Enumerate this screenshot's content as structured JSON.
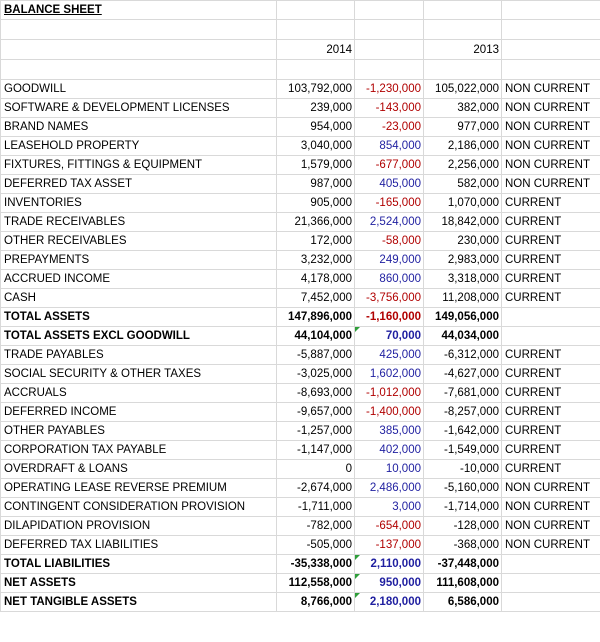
{
  "sheet": {
    "title": "BALANCE SHEET",
    "year_1": "2014",
    "year_2": "2013",
    "rows": [
      {
        "label": "GOODWILL",
        "v2014": "103,792,000",
        "change": "-1,230,000",
        "change_sign": "neg",
        "v2013": "105,022,000",
        "category": "NON CURRENT",
        "bold": false,
        "flag": false
      },
      {
        "label": "SOFTWARE & DEVELOPMENT LICENSES",
        "v2014": "239,000",
        "change": "-143,000",
        "change_sign": "neg",
        "v2013": "382,000",
        "category": "NON CURRENT",
        "bold": false,
        "flag": false
      },
      {
        "label": "BRAND NAMES",
        "v2014": "954,000",
        "change": "-23,000",
        "change_sign": "neg",
        "v2013": "977,000",
        "category": "NON CURRENT",
        "bold": false,
        "flag": false
      },
      {
        "label": "LEASEHOLD PROPERTY",
        "v2014": "3,040,000",
        "change": "854,000",
        "change_sign": "pos",
        "v2013": "2,186,000",
        "category": "NON CURRENT",
        "bold": false,
        "flag": false
      },
      {
        "label": "FIXTURES, FITTINGS & EQUIPMENT",
        "v2014": "1,579,000",
        "change": "-677,000",
        "change_sign": "neg",
        "v2013": "2,256,000",
        "category": "NON CURRENT",
        "bold": false,
        "flag": false
      },
      {
        "label": "DEFERRED TAX ASSET",
        "v2014": "987,000",
        "change": "405,000",
        "change_sign": "pos",
        "v2013": "582,000",
        "category": "NON CURRENT",
        "bold": false,
        "flag": false
      },
      {
        "label": "INVENTORIES",
        "v2014": "905,000",
        "change": "-165,000",
        "change_sign": "neg",
        "v2013": "1,070,000",
        "category": "CURRENT",
        "bold": false,
        "flag": false
      },
      {
        "label": "TRADE RECEIVABLES",
        "v2014": "21,366,000",
        "change": "2,524,000",
        "change_sign": "pos",
        "v2013": "18,842,000",
        "category": "CURRENT",
        "bold": false,
        "flag": false
      },
      {
        "label": "OTHER RECEIVABLES",
        "v2014": "172,000",
        "change": "-58,000",
        "change_sign": "neg",
        "v2013": "230,000",
        "category": "CURRENT",
        "bold": false,
        "flag": false
      },
      {
        "label": "PREPAYMENTS",
        "v2014": "3,232,000",
        "change": "249,000",
        "change_sign": "pos",
        "v2013": "2,983,000",
        "category": "CURRENT",
        "bold": false,
        "flag": false
      },
      {
        "label": "ACCRUED INCOME",
        "v2014": "4,178,000",
        "change": "860,000",
        "change_sign": "pos",
        "v2013": "3,318,000",
        "category": "CURRENT",
        "bold": false,
        "flag": false
      },
      {
        "label": "CASH",
        "v2014": "7,452,000",
        "change": "-3,756,000",
        "change_sign": "neg",
        "v2013": "11,208,000",
        "category": "CURRENT",
        "bold": false,
        "flag": false
      },
      {
        "label": "TOTAL ASSETS",
        "v2014": "147,896,000",
        "change": "-1,160,000",
        "change_sign": "neg",
        "v2013": "149,056,000",
        "category": "",
        "bold": true,
        "flag": false
      },
      {
        "label": "TOTAL ASSETS EXCL GOODWILL",
        "v2014": "44,104,000",
        "change": "70,000",
        "change_sign": "pos",
        "v2013": "44,034,000",
        "category": "",
        "bold": true,
        "flag": true
      },
      {
        "label": "TRADE PAYABLES",
        "v2014": "-5,887,000",
        "change": "425,000",
        "change_sign": "pos",
        "v2013": "-6,312,000",
        "category": "CURRENT",
        "bold": false,
        "flag": false
      },
      {
        "label": "SOCIAL SECURITY & OTHER TAXES",
        "v2014": "-3,025,000",
        "change": "1,602,000",
        "change_sign": "pos",
        "v2013": "-4,627,000",
        "category": "CURRENT",
        "bold": false,
        "flag": false
      },
      {
        "label": "ACCRUALS",
        "v2014": "-8,693,000",
        "change": "-1,012,000",
        "change_sign": "neg",
        "v2013": "-7,681,000",
        "category": "CURRENT",
        "bold": false,
        "flag": false
      },
      {
        "label": "DEFERRED INCOME",
        "v2014": "-9,657,000",
        "change": "-1,400,000",
        "change_sign": "neg",
        "v2013": "-8,257,000",
        "category": "CURRENT",
        "bold": false,
        "flag": false
      },
      {
        "label": "OTHER PAYABLES",
        "v2014": "-1,257,000",
        "change": "385,000",
        "change_sign": "pos",
        "v2013": "-1,642,000",
        "category": "CURRENT",
        "bold": false,
        "flag": false
      },
      {
        "label": "CORPORATION TAX PAYABLE",
        "v2014": "-1,147,000",
        "change": "402,000",
        "change_sign": "pos",
        "v2013": "-1,549,000",
        "category": "CURRENT",
        "bold": false,
        "flag": false
      },
      {
        "label": "OVERDRAFT & LOANS",
        "v2014": "0",
        "change": "10,000",
        "change_sign": "pos",
        "v2013": "-10,000",
        "category": "CURRENT",
        "bold": false,
        "flag": false
      },
      {
        "label": "OPERATING LEASE REVERSE PREMIUM",
        "v2014": "-2,674,000",
        "change": "2,486,000",
        "change_sign": "pos",
        "v2013": "-5,160,000",
        "category": "NON CURRENT",
        "bold": false,
        "flag": false
      },
      {
        "label": "CONTINGENT CONSIDERATION PROVISION",
        "v2014": "-1,711,000",
        "change": "3,000",
        "change_sign": "pos",
        "v2013": "-1,714,000",
        "category": "NON CURRENT",
        "bold": false,
        "flag": false
      },
      {
        "label": "DILAPIDATION PROVISION",
        "v2014": "-782,000",
        "change": "-654,000",
        "change_sign": "neg",
        "v2013": "-128,000",
        "category": "NON CURRENT",
        "bold": false,
        "flag": false
      },
      {
        "label": "DEFERRED TAX LIABILITIES",
        "v2014": "-505,000",
        "change": "-137,000",
        "change_sign": "neg",
        "v2013": "-368,000",
        "category": "NON CURRENT",
        "bold": false,
        "flag": false
      },
      {
        "label": "TOTAL LIABILITIES",
        "v2014": "-35,338,000",
        "change": "2,110,000",
        "change_sign": "pos",
        "v2013": "-37,448,000",
        "category": "",
        "bold": true,
        "flag": true
      },
      {
        "label": "NET ASSETS",
        "v2014": "112,558,000",
        "change": "950,000",
        "change_sign": "pos",
        "v2013": "111,608,000",
        "category": "",
        "bold": true,
        "flag": true
      },
      {
        "label": "NET TANGIBLE ASSETS",
        "v2014": "8,766,000",
        "change": "2,180,000",
        "change_sign": "pos",
        "v2013": "6,586,000",
        "category": "",
        "bold": true,
        "flag": true
      }
    ]
  },
  "colors": {
    "positive_change": "#1f1fa0",
    "negative_change": "#b00000",
    "gridline": "#d9d9d9",
    "flag_marker": "#2e9e3a"
  }
}
